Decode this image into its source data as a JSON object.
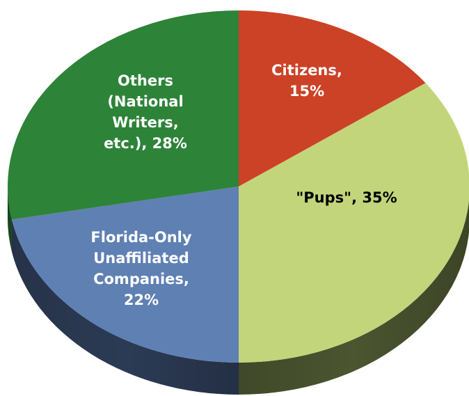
{
  "chart_data": {
    "type": "pie",
    "title": "",
    "slices": [
      {
        "label_lines": [
          "Citizens,",
          "15%"
        ],
        "category": "Citizens",
        "value": 15,
        "color": "#cc4226",
        "side_color": "#7d2615",
        "text_color": "#ffffff"
      },
      {
        "label_lines": [
          "\"Pups\", 35%"
        ],
        "category": "\"Pups\"",
        "value": 35,
        "color": "#c3d57a",
        "side_color": "#4b5530",
        "text_color": "#000000"
      },
      {
        "label_lines": [
          "Florida-Only",
          "Unaffiliated",
          "Companies,",
          "22%"
        ],
        "category": "Florida-Only Unaffiliated Companies",
        "value": 22,
        "color": "#5f80b3",
        "side_color": "#2c3b55",
        "text_color": "#ffffff"
      },
      {
        "label_lines": [
          "Others",
          "(National",
          "Writers,",
          "etc.), 28%"
        ],
        "category": "Others (National Writers, etc.)",
        "value": 28,
        "color": "#2d8338",
        "side_color": "#184b1f",
        "text_color": "#ffffff"
      }
    ]
  }
}
